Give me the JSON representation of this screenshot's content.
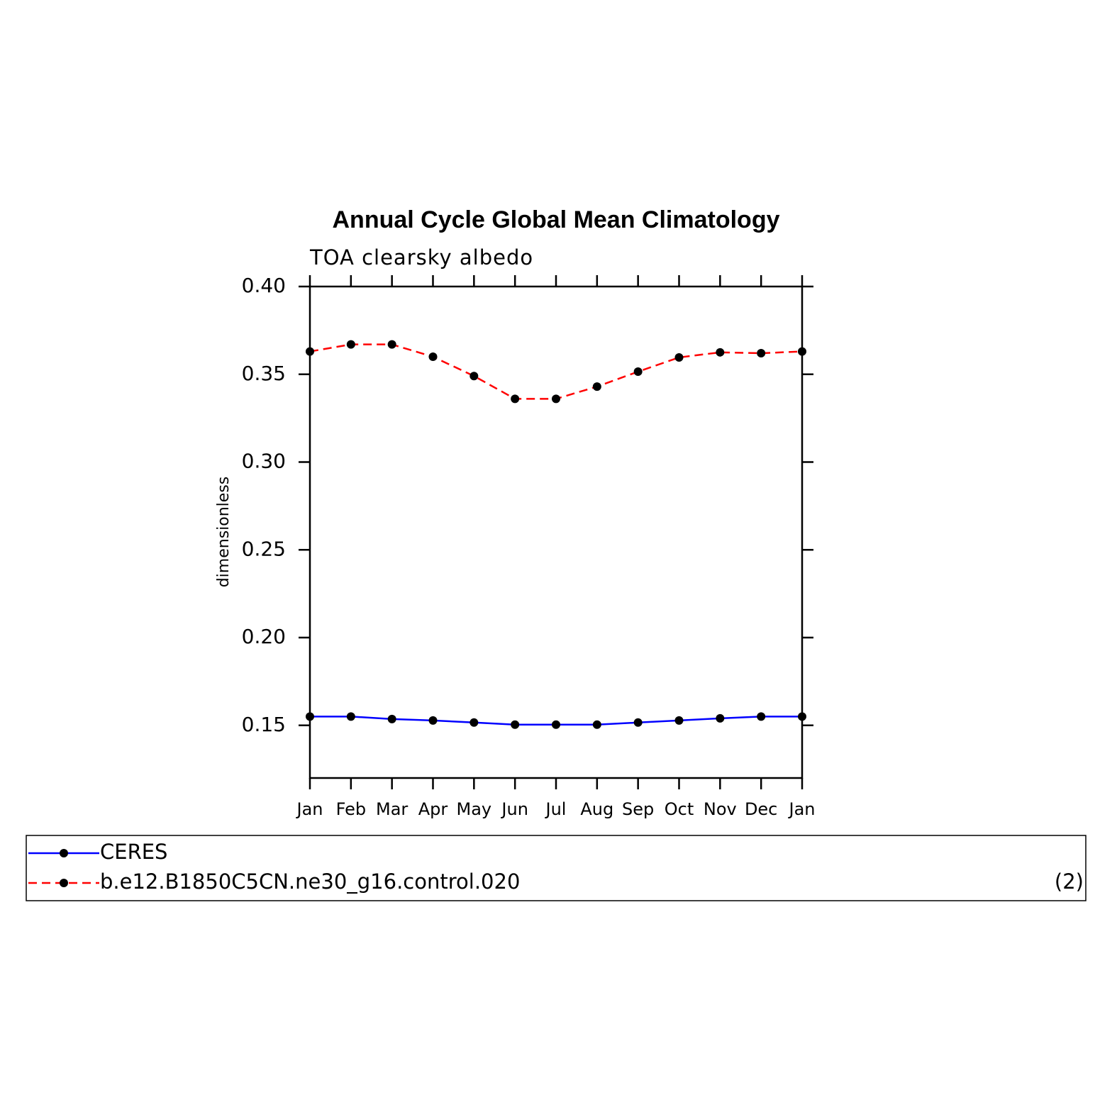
{
  "chart_data": {
    "type": "line",
    "title": "Annual Cycle Global Mean Climatology",
    "subtitle": "TOA clearsky albedo",
    "y_label": "dimensionless",
    "categories": [
      "Jan",
      "Feb",
      "Mar",
      "Apr",
      "May",
      "Jun",
      "Jul",
      "Aug",
      "Sep",
      "Oct",
      "Nov",
      "Dec",
      "Jan"
    ],
    "series": [
      {
        "name": "CERES",
        "color": "#0000ff",
        "line_style": "solid",
        "values": [
          0.155,
          0.155,
          0.1536,
          0.1528,
          0.1516,
          0.1504,
          0.1504,
          0.1504,
          0.1516,
          0.1528,
          0.154,
          0.155,
          0.155
        ]
      },
      {
        "name": "b.e12.B1850C5CN.ne30_g16.control.020",
        "color": "#ff0000",
        "line_style": "dashed",
        "values": [
          0.363,
          0.367,
          0.367,
          0.36,
          0.349,
          0.336,
          0.336,
          0.343,
          0.3515,
          0.3596,
          0.3625,
          0.362,
          0.363
        ]
      }
    ],
    "marker_color": "#000000",
    "ylim": [
      0.12,
      0.4
    ],
    "yticks": [
      0.15,
      {
        "value": 0.2,
        "label": "0.20"
      },
      0.25,
      {
        "value": 0.3,
        "label": "0.30"
      },
      0.35,
      {
        "value": 0.4,
        "label": "0.40"
      }
    ],
    "legend": "bottom",
    "annotation": "(2)"
  }
}
